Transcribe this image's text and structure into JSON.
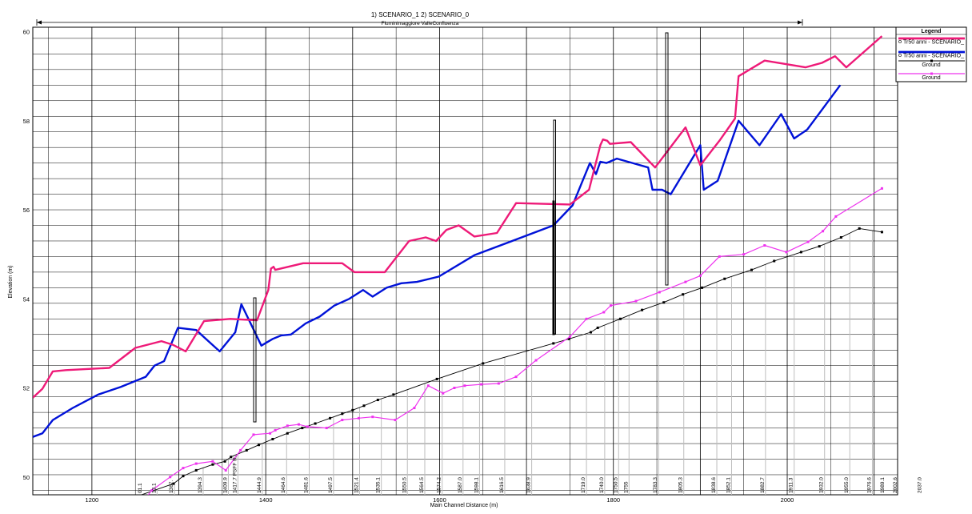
{
  "header": {
    "scenarios": "1) SCENARIO_1    2) SCENARIO_0",
    "reach": "Fluminimaggiore ValleConfluenza"
  },
  "chart_data": {
    "type": "line",
    "title": "",
    "xlabel": "Main Channel Distance (m)",
    "ylabel": "Elevation (m)",
    "xlim": [
      1132,
      2127
    ],
    "ylim": [
      49.6,
      60.1
    ],
    "x_ticks": [
      1200,
      1400,
      1600,
      1800,
      2000
    ],
    "y_ticks": [
      50,
      52,
      54,
      56,
      58,
      60
    ],
    "grid": true,
    "legend_position": "top-right",
    "legend_title": "Legend",
    "series": [
      {
        "name": "Tr50 anni - SCENARIO_",
        "color": "#ee1a78",
        "width": 2.4,
        "points": [
          [
            1132,
            51.78
          ],
          [
            1143,
            51.98
          ],
          [
            1155,
            52.37
          ],
          [
            1170,
            52.4
          ],
          [
            1220,
            52.45
          ],
          [
            1250,
            52.9
          ],
          [
            1280,
            53.05
          ],
          [
            1293,
            52.97
          ],
          [
            1308,
            52.82
          ],
          [
            1329,
            53.5
          ],
          [
            1359,
            53.55
          ],
          [
            1390,
            53.52
          ],
          [
            1403,
            54.2
          ],
          [
            1406,
            54.68
          ],
          [
            1409,
            54.72
          ],
          [
            1411,
            54.65
          ],
          [
            1443,
            54.8
          ],
          [
            1488,
            54.8
          ],
          [
            1502,
            54.6
          ],
          [
            1537,
            54.6
          ],
          [
            1565,
            55.3
          ],
          [
            1584,
            55.38
          ],
          [
            1596,
            55.3
          ],
          [
            1608,
            55.55
          ],
          [
            1622,
            55.65
          ],
          [
            1640,
            55.4
          ],
          [
            1666,
            55.48
          ],
          [
            1688,
            56.15
          ],
          [
            1750,
            56.12
          ],
          [
            1772,
            56.45
          ],
          [
            1785,
            57.45
          ],
          [
            1788,
            57.58
          ],
          [
            1793,
            57.55
          ],
          [
            1796,
            57.48
          ],
          [
            1820,
            57.52
          ],
          [
            1848,
            56.95
          ],
          [
            1883,
            57.85
          ],
          [
            1900,
            57.0
          ],
          [
            1922,
            57.55
          ],
          [
            1940,
            58.05
          ],
          [
            1944,
            59.0
          ],
          [
            1974,
            59.35
          ],
          [
            2021,
            59.2
          ],
          [
            2040,
            59.3
          ],
          [
            2055,
            59.45
          ],
          [
            2068,
            59.2
          ],
          [
            2109,
            59.9
          ]
        ]
      },
      {
        "name": "Tr50 anni - SCENARIO_",
        "color": "#0012d8",
        "width": 2.4,
        "points": [
          [
            1132,
            50.9
          ],
          [
            1143,
            50.98
          ],
          [
            1155,
            51.28
          ],
          [
            1178,
            51.55
          ],
          [
            1207,
            51.85
          ],
          [
            1233,
            52.02
          ],
          [
            1262,
            52.25
          ],
          [
            1272,
            52.5
          ],
          [
            1283,
            52.6
          ],
          [
            1299,
            53.35
          ],
          [
            1320,
            53.3
          ],
          [
            1347,
            52.82
          ],
          [
            1365,
            53.25
          ],
          [
            1372,
            53.88
          ],
          [
            1395,
            52.95
          ],
          [
            1408,
            53.1
          ],
          [
            1418,
            53.18
          ],
          [
            1429,
            53.2
          ],
          [
            1446,
            53.45
          ],
          [
            1462,
            53.6
          ],
          [
            1479,
            53.85
          ],
          [
            1496,
            54.0
          ],
          [
            1512,
            54.2
          ],
          [
            1523,
            54.05
          ],
          [
            1539,
            54.25
          ],
          [
            1556,
            54.35
          ],
          [
            1574,
            54.38
          ],
          [
            1599,
            54.5
          ],
          [
            1640,
            54.98
          ],
          [
            1731,
            55.65
          ],
          [
            1753,
            56.1
          ],
          [
            1773,
            57.05
          ],
          [
            1780,
            56.8
          ],
          [
            1785,
            57.08
          ],
          [
            1792,
            57.05
          ],
          [
            1804,
            57.15
          ],
          [
            1822,
            57.05
          ],
          [
            1840,
            56.95
          ],
          [
            1845,
            56.45
          ],
          [
            1856,
            56.45
          ],
          [
            1866,
            56.35
          ],
          [
            1900,
            57.45
          ],
          [
            1904,
            56.45
          ],
          [
            1920,
            56.65
          ],
          [
            1944,
            58.0
          ],
          [
            1968,
            57.45
          ],
          [
            1993,
            58.15
          ],
          [
            2008,
            57.6
          ],
          [
            2023,
            57.8
          ],
          [
            2061,
            58.8
          ]
        ]
      },
      {
        "name": "Ground",
        "color": "#000000",
        "width": 0.9,
        "markers": true,
        "points": [
          [
            1235,
            49.45
          ],
          [
            1294,
            49.85
          ],
          [
            1305,
            50.02
          ],
          [
            1320,
            50.15
          ],
          [
            1339,
            50.28
          ],
          [
            1353,
            50.35
          ],
          [
            1360,
            50.45
          ],
          [
            1378,
            50.6
          ],
          [
            1392,
            50.72
          ],
          [
            1408,
            50.85
          ],
          [
            1425,
            50.98
          ],
          [
            1442,
            51.1
          ],
          [
            1457,
            51.2
          ],
          [
            1474,
            51.32
          ],
          [
            1488,
            51.42
          ],
          [
            1500,
            51.5
          ],
          [
            1513,
            51.6
          ],
          [
            1529,
            51.73
          ],
          [
            1547,
            51.85
          ],
          [
            1597,
            52.2
          ],
          [
            1650,
            52.55
          ],
          [
            1731,
            53.0
          ],
          [
            1749,
            53.1
          ],
          [
            1774,
            53.25
          ],
          [
            1782,
            53.35
          ],
          [
            1808,
            53.55
          ],
          [
            1833,
            53.75
          ],
          [
            1858,
            53.92
          ],
          [
            1880,
            54.1
          ],
          [
            1902,
            54.25
          ],
          [
            1928,
            54.45
          ],
          [
            1959,
            54.65
          ],
          [
            1985,
            54.85
          ],
          [
            2016,
            55.05
          ],
          [
            2037,
            55.18
          ],
          [
            2062,
            55.38
          ],
          [
            2083,
            55.58
          ],
          [
            2109,
            55.5
          ]
        ]
      },
      {
        "name": "Ground",
        "color": "#ee33ee",
        "width": 1.2,
        "markers": true,
        "points": [
          [
            1248,
            49.2
          ],
          [
            1269,
            49.7
          ],
          [
            1290,
            50.0
          ],
          [
            1305,
            50.2
          ],
          [
            1320,
            50.3
          ],
          [
            1339,
            50.35
          ],
          [
            1354,
            50.15
          ],
          [
            1371,
            50.6
          ],
          [
            1386,
            50.95
          ],
          [
            1405,
            50.98
          ],
          [
            1411,
            51.05
          ],
          [
            1425,
            51.15
          ],
          [
            1438,
            51.18
          ],
          [
            1448,
            51.13
          ],
          [
            1470,
            51.1
          ],
          [
            1488,
            51.28
          ],
          [
            1507,
            51.32
          ],
          [
            1523,
            51.35
          ],
          [
            1549,
            51.28
          ],
          [
            1571,
            51.55
          ],
          [
            1587,
            52.05
          ],
          [
            1604,
            51.88
          ],
          [
            1617,
            52.0
          ],
          [
            1629,
            52.05
          ],
          [
            1648,
            52.08
          ],
          [
            1668,
            52.1
          ],
          [
            1688,
            52.25
          ],
          [
            1711,
            52.62
          ],
          [
            1750,
            53.15
          ],
          [
            1769,
            53.55
          ],
          [
            1789,
            53.7
          ],
          [
            1797,
            53.85
          ],
          [
            1826,
            53.95
          ],
          [
            1853,
            54.15
          ],
          [
            1883,
            54.38
          ],
          [
            1900,
            54.52
          ],
          [
            1922,
            54.95
          ],
          [
            1950,
            55.0
          ],
          [
            1974,
            55.2
          ],
          [
            1999,
            55.05
          ],
          [
            2024,
            55.28
          ],
          [
            2041,
            55.52
          ],
          [
            2056,
            55.85
          ],
          [
            2109,
            56.48
          ]
        ]
      }
    ],
    "section_labels": [
      {
        "x": 1259,
        "label": "01.1"
      },
      {
        "x": 1275,
        "label": "13.1"
      },
      {
        "x": 1295,
        "label": "1367."
      },
      {
        "x": 1328,
        "label": "1394.3"
      },
      {
        "x": 1357,
        "label": "1409.9"
      },
      {
        "x": 1368,
        "label": "1417.7 PSFF R."
      },
      {
        "x": 1396,
        "label": "1444.9"
      },
      {
        "x": 1424,
        "label": "1464.6"
      },
      {
        "x": 1450,
        "label": "1481.6"
      },
      {
        "x": 1478,
        "label": "1497.5"
      },
      {
        "x": 1508,
        "label": "1521.4"
      },
      {
        "x": 1533,
        "label": "1535.1"
      },
      {
        "x": 1563,
        "label": "1550.5"
      },
      {
        "x": 1583,
        "label": "1564.5"
      },
      {
        "x": 1603,
        "label": "1574.2"
      },
      {
        "x": 1627,
        "label": "1587.0"
      },
      {
        "x": 1646,
        "label": "1598.1"
      },
      {
        "x": 1675,
        "label": "1616.5"
      },
      {
        "x": 1706,
        "label": "1638.9"
      },
      {
        "x": 1769,
        "label": "1719.0"
      },
      {
        "x": 1790,
        "label": "1740.0"
      },
      {
        "x": 1806,
        "label": "1750.5"
      },
      {
        "x": 1818,
        "label": "1755"
      },
      {
        "x": 1852,
        "label": "1783.3"
      },
      {
        "x": 1881,
        "label": "1805.3"
      },
      {
        "x": 1919,
        "label": "1838.6"
      },
      {
        "x": 1936,
        "label": "1852.1"
      },
      {
        "x": 1975,
        "label": "1882.7"
      },
      {
        "x": 2008,
        "label": "1911.3"
      },
      {
        "x": 2043,
        "label": "1932.0"
      },
      {
        "x": 2072,
        "label": "1955.0"
      },
      {
        "x": 2098,
        "label": "1976.6"
      },
      {
        "x": 2113,
        "label": "1989.1"
      },
      {
        "x": 2128,
        "label": "2002.6"
      },
      {
        "x": 2156,
        "label": "2037.0"
      }
    ]
  }
}
